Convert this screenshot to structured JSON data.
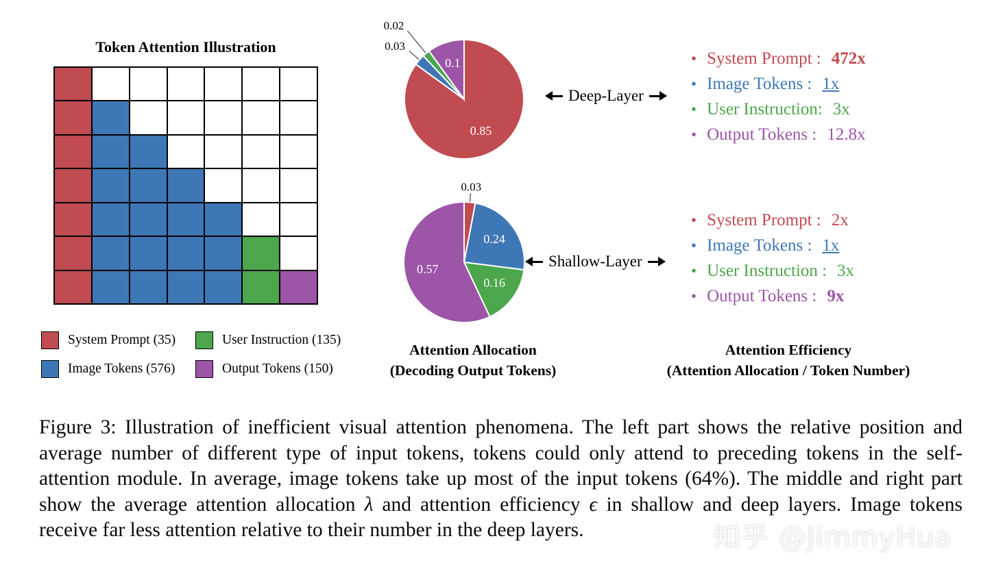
{
  "colors": {
    "system_prompt": "#c04b50",
    "image_tokens": "#3e77b6",
    "user_instruction": "#4ca64c",
    "output_tokens": "#9c55a7"
  },
  "illustration": {
    "title": "Token Attention Illustration",
    "cell_colors": {
      "R": "#c04b50",
      "B": "#3e77b6",
      "G": "#4ca64c",
      "P": "#9c55a7",
      "W": "#ffffff"
    },
    "grid_rows": [
      "RWWWWWW",
      "RBWWWWW",
      "RBBWWWW",
      "RBBBWWW",
      "RBBBBWW",
      "RBBBBGW",
      "RBBBBGP"
    ],
    "legend": [
      {
        "label": "System Prompt (35)",
        "color": "#c04b50"
      },
      {
        "label": "User Instruction (135)",
        "color": "#4ca64c"
      },
      {
        "label": "Image Tokens (576)",
        "color": "#3e77b6"
      },
      {
        "label": "Output Tokens (150)",
        "color": "#9c55a7"
      }
    ]
  },
  "chart_data": [
    {
      "type": "pie",
      "layer": "Deep-Layer",
      "title": "Attention Allocation (Decoding Output Tokens) - Deep Layer",
      "slices": [
        {
          "name": "System Prompt",
          "value": 0.85,
          "label": "0.85",
          "color": "#c04b50",
          "label_pos": "inside"
        },
        {
          "name": "Image Tokens",
          "value": 0.03,
          "label": "0.03",
          "color": "#3e77b6",
          "label_pos": "outside",
          "label_r": 1.32
        },
        {
          "name": "User Instruction",
          "value": 0.02,
          "label": "0.02",
          "color": "#4ca64c",
          "label_pos": "outside",
          "label_r": 1.58
        },
        {
          "name": "Output Tokens",
          "value": 0.1,
          "label": "0.1",
          "color": "#9c55a7",
          "label_pos": "inside"
        }
      ]
    },
    {
      "type": "pie",
      "layer": "Shallow-Layer",
      "title": "Attention Allocation (Decoding Output Tokens) - Shallow Layer",
      "slices": [
        {
          "name": "System Prompt",
          "value": 0.03,
          "label": "0.03",
          "color": "#c04b50",
          "label_pos": "outside",
          "label_r": 1.24
        },
        {
          "name": "Image Tokens",
          "value": 0.24,
          "label": "0.24",
          "color": "#3e77b6",
          "label_pos": "inside"
        },
        {
          "name": "User Instruction",
          "value": 0.16,
          "label": "0.16",
          "color": "#4ca64c",
          "label_pos": "inside"
        },
        {
          "name": "Output Tokens",
          "value": 0.57,
          "label": "0.57",
          "color": "#9c55a7",
          "label_pos": "inside"
        }
      ]
    }
  ],
  "middle": {
    "deep_label": "Deep-Layer",
    "shallow_label": "Shallow-Layer",
    "caption_line1": "Attention Allocation",
    "caption_line2": "(Decoding Output Tokens)"
  },
  "efficiency": {
    "caption_line1": "Attention Efficiency",
    "caption_line2": "(Attention Allocation / Token Number)",
    "deep_items": [
      {
        "label": "System Prompt :",
        "value": "472x",
        "color": "#c04b50",
        "bold": true
      },
      {
        "label": "Image Tokens :",
        "value": "1x",
        "color": "#3e77b6",
        "underline": true
      },
      {
        "label": "User Instruction:",
        "value": "3x",
        "color": "#4ca64c"
      },
      {
        "label": "Output Tokens :",
        "value": "12.8x",
        "color": "#9c55a7"
      }
    ],
    "shallow_items": [
      {
        "label": "System Prompt :",
        "value": "2x",
        "color": "#c04b50"
      },
      {
        "label": "Image Tokens :",
        "value": "1x",
        "color": "#3e77b6",
        "underline": true
      },
      {
        "label": "User Instruction :",
        "value": "3x",
        "color": "#4ca64c"
      },
      {
        "label": "Output Tokens :",
        "value": "9x",
        "color": "#9c55a7",
        "bold": true
      }
    ]
  },
  "caption": {
    "parts": [
      {
        "text": "Figure 3: Illustration of inefficient visual attention phenomena. The left part shows the relative position and average number of different type of input tokens, tokens could only attend to preceding tokens in the self-attention module. In average, image tokens take up most of the input tokens (64%). The middle and right part show the average attention allocation "
      },
      {
        "text": "λ",
        "italic": true
      },
      {
        "text": " and attention efficiency "
      },
      {
        "text": "ϵ",
        "italic": true
      },
      {
        "text": " in shallow and deep layers. Image tokens receive far less attention relative to their number in the deep layers."
      }
    ]
  },
  "watermark": "知乎 @JimmyHua"
}
